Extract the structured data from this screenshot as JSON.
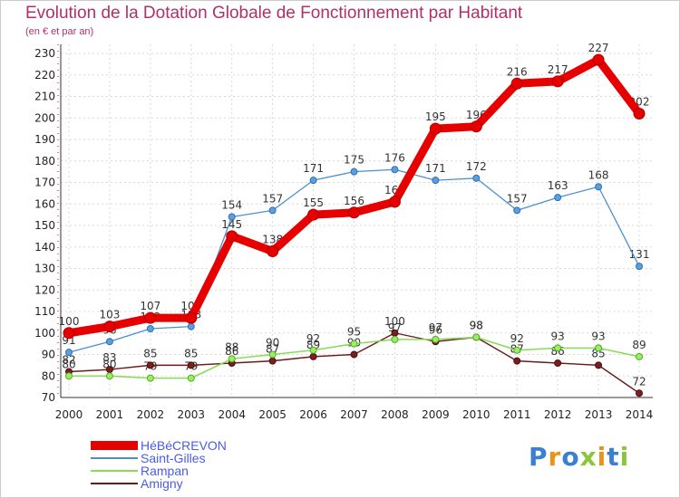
{
  "chart_data": {
    "type": "line",
    "title": "Evolution de la Dotation Globale de Fonctionnement par Habitant",
    "subtitle": "(en € et par an)",
    "xlabel": "",
    "ylabel": "",
    "ylim": [
      70,
      230
    ],
    "yticks": [
      70,
      80,
      90,
      100,
      110,
      120,
      130,
      140,
      150,
      160,
      170,
      180,
      190,
      200,
      210,
      220,
      230
    ],
    "grid": true,
    "legend_position": "bottom-left",
    "x": [
      "2000",
      "2001",
      "2002",
      "2003",
      "2004",
      "2005",
      "2006",
      "2007",
      "2008",
      "2009",
      "2010",
      "2011",
      "2012",
      "2013",
      "2014"
    ],
    "series": [
      {
        "name": "HéBéCREVON",
        "color": "#e60000",
        "values": [
          100,
          103,
          107,
          107,
          145,
          138,
          155,
          156,
          161,
          195,
          196,
          216,
          217,
          227,
          202
        ],
        "labels": [
          "100",
          "103",
          "107",
          "107",
          "145",
          "138",
          "155",
          "156",
          "161",
          "195",
          "196",
          "216",
          "217",
          "227",
          "202"
        ]
      },
      {
        "name": "Saint-Gilles",
        "color": "#4a8fd0",
        "values": [
          91,
          96,
          102,
          103,
          154,
          157,
          171,
          175,
          176,
          171,
          172,
          157,
          163,
          168,
          131
        ],
        "labels": [
          "91",
          "96",
          "102",
          "103",
          "154",
          "157",
          "171",
          "175",
          "176",
          "171",
          "172",
          "157",
          "163",
          "168",
          "131"
        ]
      },
      {
        "name": "Rampan",
        "color": "#88dd55",
        "values": [
          80,
          80,
          79,
          79,
          88,
          90,
          92,
          95,
          97,
          97,
          98,
          92,
          93,
          93,
          89
        ],
        "labels": [
          "80",
          "80",
          "79",
          "79",
          "88",
          "90",
          "92",
          "95",
          "97",
          "97",
          "98",
          "92",
          "93",
          "93",
          "89"
        ]
      },
      {
        "name": "Amigny",
        "color": "#6b1a1a",
        "values": [
          82,
          83,
          85,
          85,
          86,
          87,
          89,
          90,
          100,
          96,
          98,
          87,
          86,
          85,
          72
        ],
        "labels": [
          "82",
          "83",
          "85",
          "85",
          "86",
          "87",
          "89",
          "90",
          "100",
          "96",
          "98",
          "87",
          "86",
          "85",
          "72"
        ]
      }
    ]
  },
  "logo": {
    "text": "Proxiti",
    "colors": [
      "#3a7fd0",
      "#e8941a",
      "#3a7fd0",
      "#8cc63f",
      "#e8941a",
      "#3a7fd0",
      "#8cc63f"
    ]
  }
}
